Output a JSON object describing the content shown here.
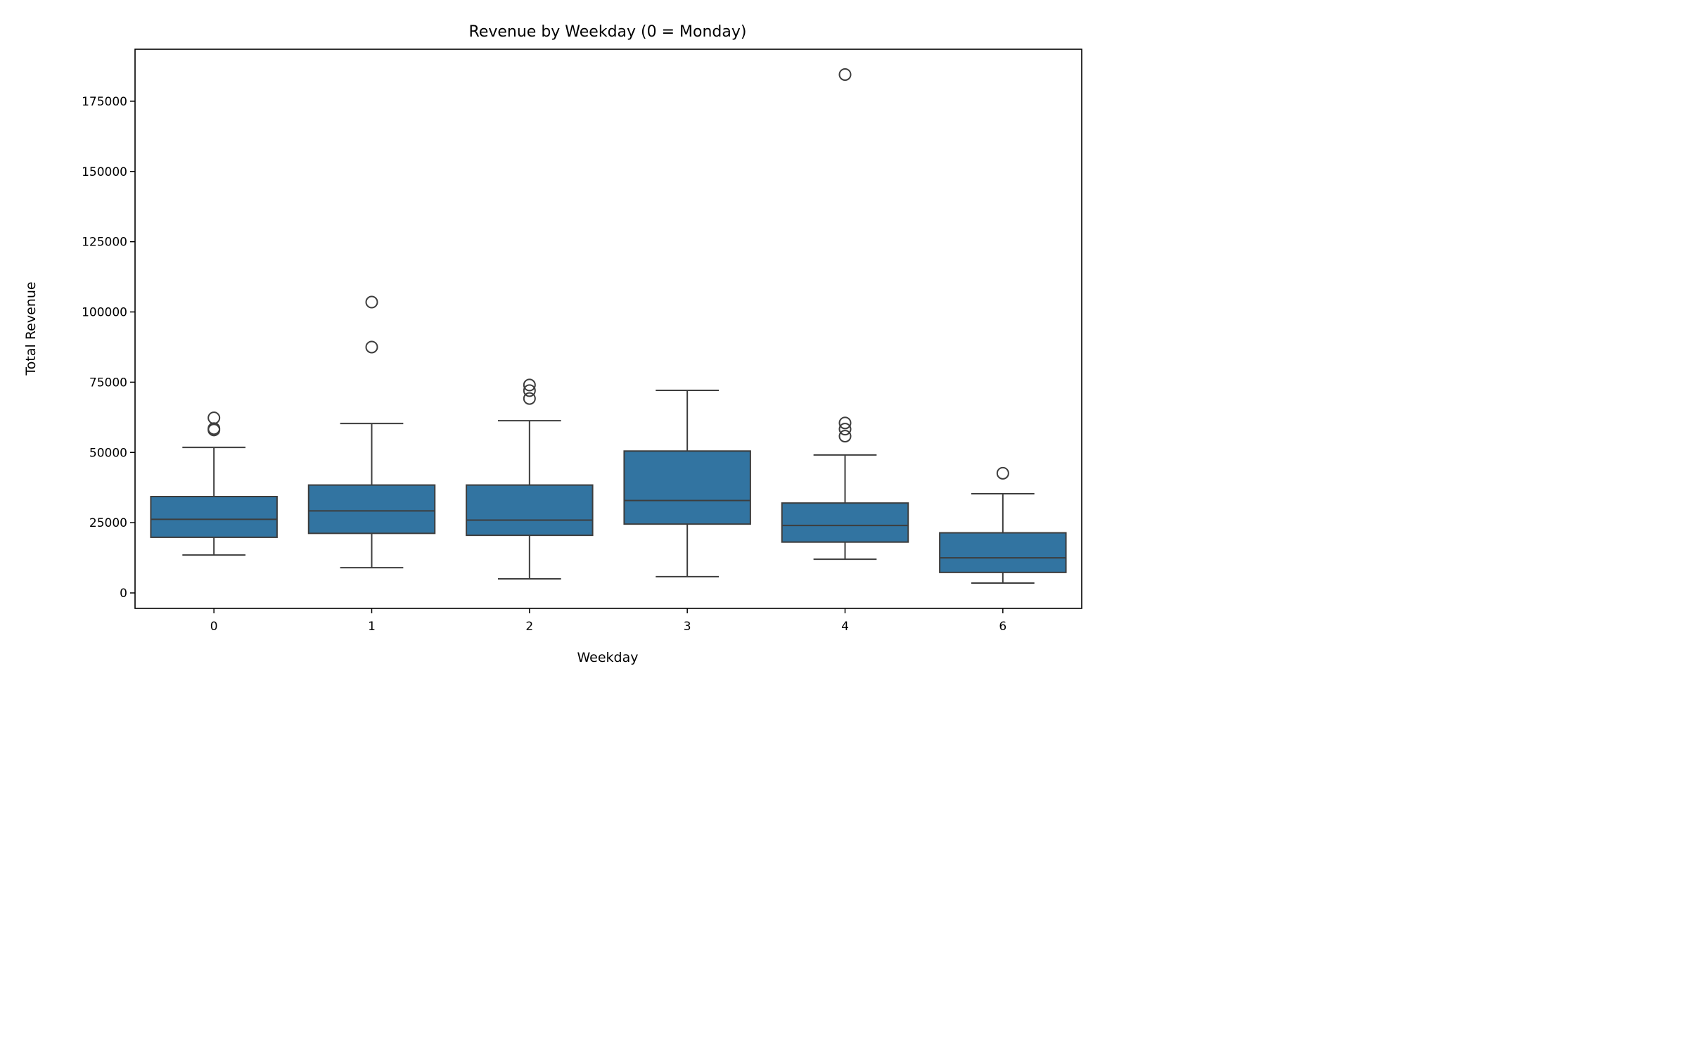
{
  "chart_data": {
    "type": "box",
    "title": "Revenue by Weekday (0 = Monday)",
    "xlabel": "Weekday",
    "ylabel": "Total Revenue",
    "categories": [
      "0",
      "1",
      "2",
      "3",
      "4",
      "6"
    ],
    "ylim": [
      -5500,
      193500
    ],
    "yticks": [
      0,
      25000,
      50000,
      75000,
      100000,
      125000,
      150000,
      175000
    ],
    "ytick_labels": [
      "0",
      "25000",
      "50000",
      "75000",
      "100000",
      "125000",
      "150000",
      "175000"
    ],
    "grid": false,
    "legend": "none",
    "boxes": [
      {
        "category": "0",
        "whisker_low": 13500,
        "q1": 19800,
        "median": 26200,
        "q3": 34300,
        "whisker_high": 51800,
        "outliers": [
          58000,
          58500,
          62300
        ]
      },
      {
        "category": "1",
        "whisker_low": 9000,
        "q1": 21200,
        "median": 29200,
        "q3": 38400,
        "whisker_high": 60300,
        "outliers": [
          87500,
          103500
        ]
      },
      {
        "category": "2",
        "whisker_low": 5000,
        "q1": 20500,
        "median": 25900,
        "q3": 38400,
        "whisker_high": 61300,
        "outliers": [
          69200,
          72000,
          74000
        ]
      },
      {
        "category": "3",
        "whisker_low": 5800,
        "q1": 24500,
        "median": 32900,
        "q3": 50500,
        "whisker_high": 72100,
        "outliers": []
      },
      {
        "category": "4",
        "whisker_low": 12000,
        "q1": 18100,
        "median": 24000,
        "q3": 32000,
        "whisker_high": 49100,
        "outliers": [
          55800,
          58300,
          60500,
          184500
        ]
      },
      {
        "category": "6",
        "whisker_low": 3500,
        "q1": 7300,
        "median": 12500,
        "q3": 21400,
        "whisker_high": 35300,
        "outliers": [
          42600
        ]
      }
    ],
    "colors": {
      "box_fill": "#3274a1",
      "line": "#3d3d3d",
      "axis": "#000000"
    }
  }
}
